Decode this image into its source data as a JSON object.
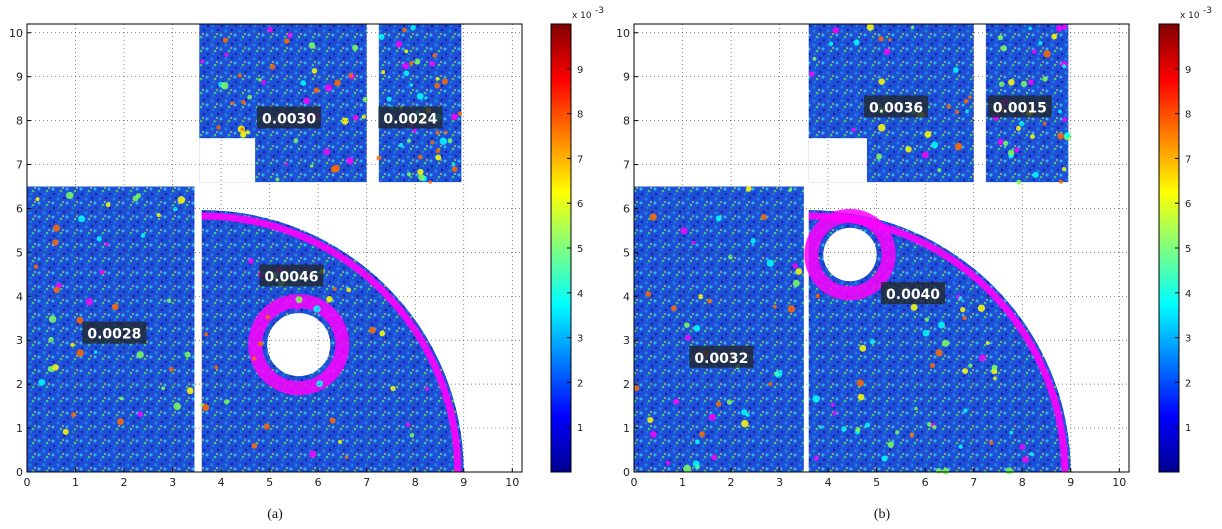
{
  "chart_data": [
    {
      "type": "heatmap",
      "panel": "a",
      "caption": "(a)",
      "x_ticks": [
        0,
        1,
        2,
        3,
        4,
        5,
        6,
        7,
        8,
        9,
        10
      ],
      "y_ticks": [
        0,
        1,
        2,
        3,
        4,
        5,
        6,
        7,
        8,
        9,
        10
      ],
      "xlim": [
        0,
        10.2
      ],
      "ylim": [
        0,
        10.2
      ],
      "grid": true,
      "colorbar": {
        "ticks": [
          1,
          2,
          3,
          4,
          5,
          6,
          7,
          8,
          9
        ],
        "range": [
          0,
          10
        ],
        "multiplier": "x 10",
        "exponent": "-3",
        "colors": [
          "#00008f",
          "#0000ff",
          "#00ffff",
          "#ffff00",
          "#ff0000",
          "#800000"
        ]
      },
      "regions": [
        {
          "id": "left-block",
          "rect": [
            0,
            0,
            3.45,
            6.5
          ],
          "label": "0.0028",
          "label_at": [
            1.8,
            3.15
          ]
        },
        {
          "id": "quarter-disc",
          "shape": "quarter-circle",
          "center": [
            3.6,
            0
          ],
          "radius": 5.4,
          "hole": {
            "center": [
              5.6,
              2.9
            ],
            "radius": 0.65
          },
          "label": "0.0046",
          "label_at": [
            5.45,
            4.45
          ]
        },
        {
          "id": "top-middle",
          "rect": [
            3.55,
            6.6,
            7.0,
            10.2
          ],
          "cutout": [
            3.55,
            6.6,
            4.7,
            7.6
          ],
          "label": "0.0030",
          "label_at": [
            5.4,
            8.05
          ]
        },
        {
          "id": "top-right",
          "rect": [
            7.25,
            6.6,
            8.95,
            10.2
          ],
          "label": "0.0024",
          "label_at": [
            7.9,
            8.05
          ]
        }
      ]
    },
    {
      "type": "heatmap",
      "panel": "b",
      "caption": "(b)",
      "x_ticks": [
        0,
        1,
        2,
        3,
        4,
        5,
        6,
        7,
        8,
        9,
        10
      ],
      "y_ticks": [
        0,
        1,
        2,
        3,
        4,
        5,
        6,
        7,
        8,
        9,
        10
      ],
      "xlim": [
        0,
        10.2
      ],
      "ylim": [
        0,
        10.2
      ],
      "grid": true,
      "colorbar": {
        "ticks": [
          1,
          2,
          3,
          4,
          5,
          6,
          7,
          8,
          9
        ],
        "range": [
          0,
          10
        ],
        "multiplier": "x 10",
        "exponent": "-3",
        "colors": [
          "#00008f",
          "#0000ff",
          "#00ffff",
          "#ffff00",
          "#ff0000",
          "#800000"
        ]
      },
      "regions": [
        {
          "id": "left-block",
          "rect": [
            0,
            0,
            3.5,
            6.5
          ],
          "label": "0.0032",
          "label_at": [
            1.8,
            2.6
          ]
        },
        {
          "id": "quarter-disc",
          "shape": "quarter-circle",
          "center": [
            3.6,
            0
          ],
          "radius": 5.4,
          "hole": {
            "center": [
              4.45,
              4.95
            ],
            "radius": 0.55
          },
          "label": "0.0040",
          "label_at": [
            5.75,
            4.05
          ]
        },
        {
          "id": "top-middle",
          "rect": [
            3.6,
            6.6,
            7.0,
            10.2
          ],
          "cutout": [
            3.6,
            6.6,
            4.8,
            7.6
          ],
          "label": "0.0036",
          "label_at": [
            5.4,
            8.3
          ]
        },
        {
          "id": "top-right",
          "rect": [
            7.25,
            6.6,
            8.95,
            10.2
          ],
          "label": "0.0015",
          "label_at": [
            7.95,
            8.3
          ]
        }
      ]
    }
  ]
}
